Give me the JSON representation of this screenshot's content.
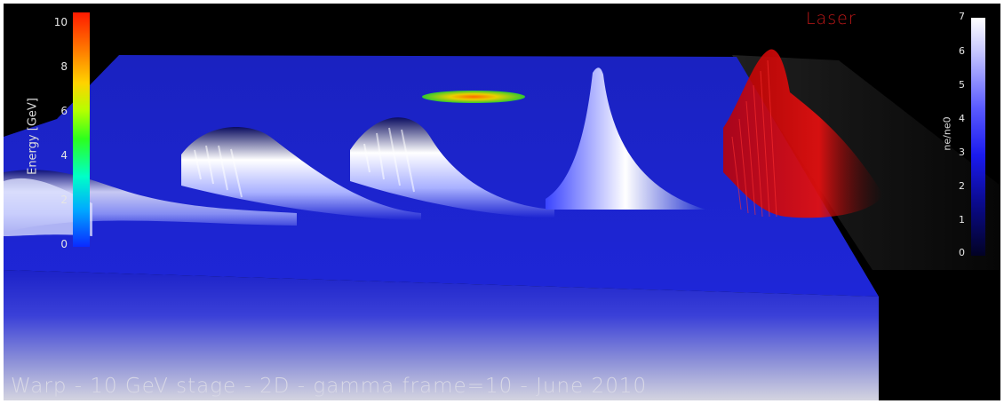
{
  "laser_label": "Laser",
  "caption": "Warp - 10 GeV stage - 2D - gamma frame=10 - June 2010",
  "energy_colorbar": {
    "title": "Energy [GeV]",
    "ticks": [
      "10",
      "8",
      "6",
      "4",
      "2",
      "0"
    ]
  },
  "density_colorbar": {
    "title": "ne/ne0",
    "ticks": [
      "7",
      "6",
      "5",
      "4",
      "3",
      "2",
      "1",
      "0"
    ]
  },
  "colors": {
    "background": "#000000",
    "plasma": "#1a22d6",
    "laser": "#d01010",
    "wave_crest": "#ffffff"
  }
}
